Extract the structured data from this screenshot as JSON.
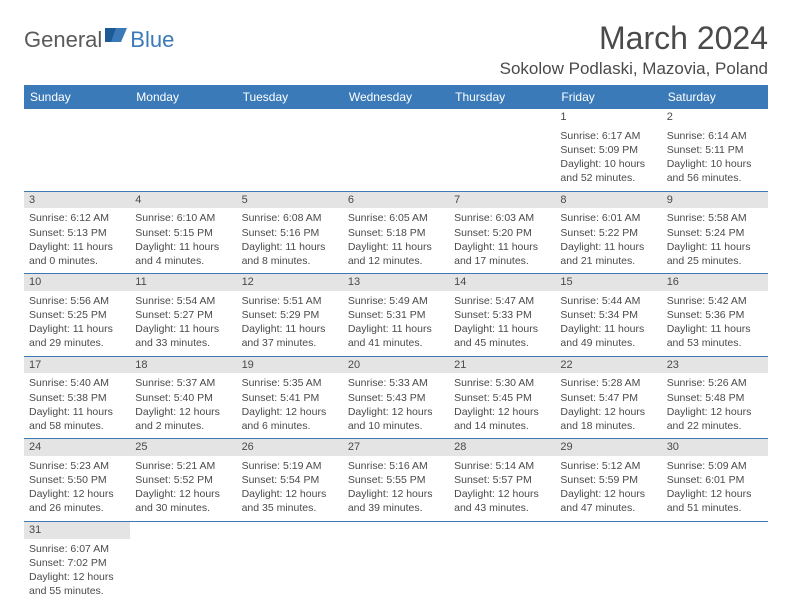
{
  "brand": {
    "part1": "General",
    "part2": "Blue"
  },
  "title": "March 2024",
  "location": "Sokolow Podlaski, Mazovia, Poland",
  "dayNames": [
    "Sunday",
    "Monday",
    "Tuesday",
    "Wednesday",
    "Thursday",
    "Friday",
    "Saturday"
  ],
  "colors": {
    "header_bg": "#3a7ab8",
    "header_text": "#ffffff",
    "band_bg": "#e4e4e4",
    "text": "#4a4a4a",
    "brand_blue": "#3a7ab8"
  },
  "weeks": [
    [
      null,
      null,
      null,
      null,
      null,
      {
        "n": "1",
        "sr": "Sunrise: 6:17 AM",
        "ss": "Sunset: 5:09 PM",
        "d1": "Daylight: 10 hours",
        "d2": "and 52 minutes.",
        "band": false
      },
      {
        "n": "2",
        "sr": "Sunrise: 6:14 AM",
        "ss": "Sunset: 5:11 PM",
        "d1": "Daylight: 10 hours",
        "d2": "and 56 minutes.",
        "band": false
      }
    ],
    [
      {
        "n": "3",
        "sr": "Sunrise: 6:12 AM",
        "ss": "Sunset: 5:13 PM",
        "d1": "Daylight: 11 hours",
        "d2": "and 0 minutes.",
        "band": true
      },
      {
        "n": "4",
        "sr": "Sunrise: 6:10 AM",
        "ss": "Sunset: 5:15 PM",
        "d1": "Daylight: 11 hours",
        "d2": "and 4 minutes.",
        "band": true
      },
      {
        "n": "5",
        "sr": "Sunrise: 6:08 AM",
        "ss": "Sunset: 5:16 PM",
        "d1": "Daylight: 11 hours",
        "d2": "and 8 minutes.",
        "band": true
      },
      {
        "n": "6",
        "sr": "Sunrise: 6:05 AM",
        "ss": "Sunset: 5:18 PM",
        "d1": "Daylight: 11 hours",
        "d2": "and 12 minutes.",
        "band": true
      },
      {
        "n": "7",
        "sr": "Sunrise: 6:03 AM",
        "ss": "Sunset: 5:20 PM",
        "d1": "Daylight: 11 hours",
        "d2": "and 17 minutes.",
        "band": true
      },
      {
        "n": "8",
        "sr": "Sunrise: 6:01 AM",
        "ss": "Sunset: 5:22 PM",
        "d1": "Daylight: 11 hours",
        "d2": "and 21 minutes.",
        "band": true
      },
      {
        "n": "9",
        "sr": "Sunrise: 5:58 AM",
        "ss": "Sunset: 5:24 PM",
        "d1": "Daylight: 11 hours",
        "d2": "and 25 minutes.",
        "band": true
      }
    ],
    [
      {
        "n": "10",
        "sr": "Sunrise: 5:56 AM",
        "ss": "Sunset: 5:25 PM",
        "d1": "Daylight: 11 hours",
        "d2": "and 29 minutes.",
        "band": true
      },
      {
        "n": "11",
        "sr": "Sunrise: 5:54 AM",
        "ss": "Sunset: 5:27 PM",
        "d1": "Daylight: 11 hours",
        "d2": "and 33 minutes.",
        "band": true
      },
      {
        "n": "12",
        "sr": "Sunrise: 5:51 AM",
        "ss": "Sunset: 5:29 PM",
        "d1": "Daylight: 11 hours",
        "d2": "and 37 minutes.",
        "band": true
      },
      {
        "n": "13",
        "sr": "Sunrise: 5:49 AM",
        "ss": "Sunset: 5:31 PM",
        "d1": "Daylight: 11 hours",
        "d2": "and 41 minutes.",
        "band": true
      },
      {
        "n": "14",
        "sr": "Sunrise: 5:47 AM",
        "ss": "Sunset: 5:33 PM",
        "d1": "Daylight: 11 hours",
        "d2": "and 45 minutes.",
        "band": true
      },
      {
        "n": "15",
        "sr": "Sunrise: 5:44 AM",
        "ss": "Sunset: 5:34 PM",
        "d1": "Daylight: 11 hours",
        "d2": "and 49 minutes.",
        "band": true
      },
      {
        "n": "16",
        "sr": "Sunrise: 5:42 AM",
        "ss": "Sunset: 5:36 PM",
        "d1": "Daylight: 11 hours",
        "d2": "and 53 minutes.",
        "band": true
      }
    ],
    [
      {
        "n": "17",
        "sr": "Sunrise: 5:40 AM",
        "ss": "Sunset: 5:38 PM",
        "d1": "Daylight: 11 hours",
        "d2": "and 58 minutes.",
        "band": true
      },
      {
        "n": "18",
        "sr": "Sunrise: 5:37 AM",
        "ss": "Sunset: 5:40 PM",
        "d1": "Daylight: 12 hours",
        "d2": "and 2 minutes.",
        "band": true
      },
      {
        "n": "19",
        "sr": "Sunrise: 5:35 AM",
        "ss": "Sunset: 5:41 PM",
        "d1": "Daylight: 12 hours",
        "d2": "and 6 minutes.",
        "band": true
      },
      {
        "n": "20",
        "sr": "Sunrise: 5:33 AM",
        "ss": "Sunset: 5:43 PM",
        "d1": "Daylight: 12 hours",
        "d2": "and 10 minutes.",
        "band": true
      },
      {
        "n": "21",
        "sr": "Sunrise: 5:30 AM",
        "ss": "Sunset: 5:45 PM",
        "d1": "Daylight: 12 hours",
        "d2": "and 14 minutes.",
        "band": true
      },
      {
        "n": "22",
        "sr": "Sunrise: 5:28 AM",
        "ss": "Sunset: 5:47 PM",
        "d1": "Daylight: 12 hours",
        "d2": "and 18 minutes.",
        "band": true
      },
      {
        "n": "23",
        "sr": "Sunrise: 5:26 AM",
        "ss": "Sunset: 5:48 PM",
        "d1": "Daylight: 12 hours",
        "d2": "and 22 minutes.",
        "band": true
      }
    ],
    [
      {
        "n": "24",
        "sr": "Sunrise: 5:23 AM",
        "ss": "Sunset: 5:50 PM",
        "d1": "Daylight: 12 hours",
        "d2": "and 26 minutes.",
        "band": true
      },
      {
        "n": "25",
        "sr": "Sunrise: 5:21 AM",
        "ss": "Sunset: 5:52 PM",
        "d1": "Daylight: 12 hours",
        "d2": "and 30 minutes.",
        "band": true
      },
      {
        "n": "26",
        "sr": "Sunrise: 5:19 AM",
        "ss": "Sunset: 5:54 PM",
        "d1": "Daylight: 12 hours",
        "d2": "and 35 minutes.",
        "band": true
      },
      {
        "n": "27",
        "sr": "Sunrise: 5:16 AM",
        "ss": "Sunset: 5:55 PM",
        "d1": "Daylight: 12 hours",
        "d2": "and 39 minutes.",
        "band": true
      },
      {
        "n": "28",
        "sr": "Sunrise: 5:14 AM",
        "ss": "Sunset: 5:57 PM",
        "d1": "Daylight: 12 hours",
        "d2": "and 43 minutes.",
        "band": true
      },
      {
        "n": "29",
        "sr": "Sunrise: 5:12 AM",
        "ss": "Sunset: 5:59 PM",
        "d1": "Daylight: 12 hours",
        "d2": "and 47 minutes.",
        "band": true
      },
      {
        "n": "30",
        "sr": "Sunrise: 5:09 AM",
        "ss": "Sunset: 6:01 PM",
        "d1": "Daylight: 12 hours",
        "d2": "and 51 minutes.",
        "band": true
      }
    ],
    [
      {
        "n": "31",
        "sr": "Sunrise: 6:07 AM",
        "ss": "Sunset: 7:02 PM",
        "d1": "Daylight: 12 hours",
        "d2": "and 55 minutes.",
        "band": true
      },
      null,
      null,
      null,
      null,
      null,
      null
    ]
  ]
}
